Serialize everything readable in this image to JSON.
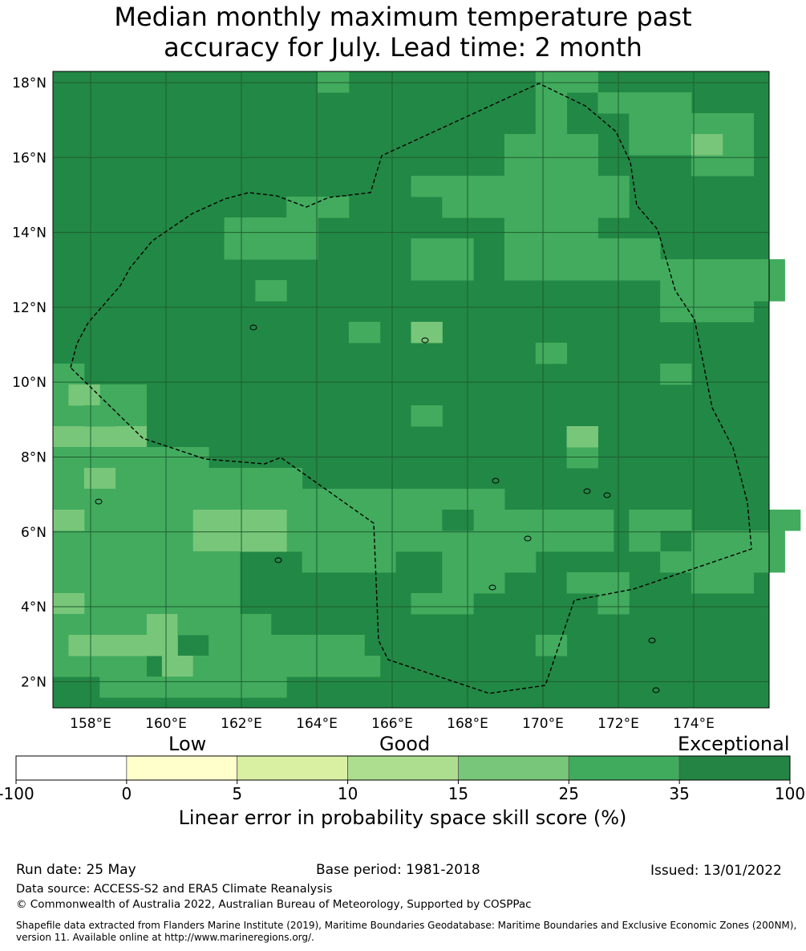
{
  "title": {
    "line1": "Median monthly maximum temperature past",
    "line2": "accuracy for July. Lead time: 2 month"
  },
  "map": {
    "lon_range": [
      157,
      176
    ],
    "lat_range": [
      1.3,
      18.3
    ],
    "lon_ticks": [
      "158°E",
      "160°E",
      "162°E",
      "164°E",
      "166°E",
      "168°E",
      "170°E",
      "172°E",
      "174°E"
    ],
    "lat_ticks": [
      "2°N",
      "4°N",
      "6°N",
      "8°N",
      "10°N",
      "12°N",
      "14°N",
      "16°N",
      "18°N"
    ],
    "grid": true,
    "eez_boundary": "dashed black",
    "skill_category_colors": {
      "exceptional": "#228845",
      "very_good": "#42ab5e",
      "good": "#78c679",
      "fair": "#addd8e"
    }
  },
  "colorbar": {
    "category_labels": {
      "low": "Low",
      "good": "Good",
      "exceptional": "Exceptional"
    },
    "boundaries": [
      "-100",
      "0",
      "5",
      "10",
      "15",
      "25",
      "35",
      "100"
    ],
    "colors": [
      "#ffffff",
      "#ffffcc",
      "#d9f0a3",
      "#addd8e",
      "#78c679",
      "#41ab5d",
      "#238443"
    ],
    "axis_label": "Linear error in probability space skill score (%)"
  },
  "footer": {
    "run_date": "Run date: 25 May",
    "base_period": "Base period: 1981-2018",
    "issued": "Issued: 13/01/2022",
    "data_source": "Data source: ACCESS-S2 and ERA5 Climate Reanalysis",
    "copyright": "© Commonwealth of Australia 2022, Australian Bureau of Meteorology, Supported by COSPPac",
    "shapefile_note": "Shapefile data extracted from Flanders Marine Institute (2019), Maritime Boundaries Geodatabase: Maritime Boundaries and Exclusive Economic Zones (200NM), version 11. Available online at http://www.marineregions.org/."
  }
}
